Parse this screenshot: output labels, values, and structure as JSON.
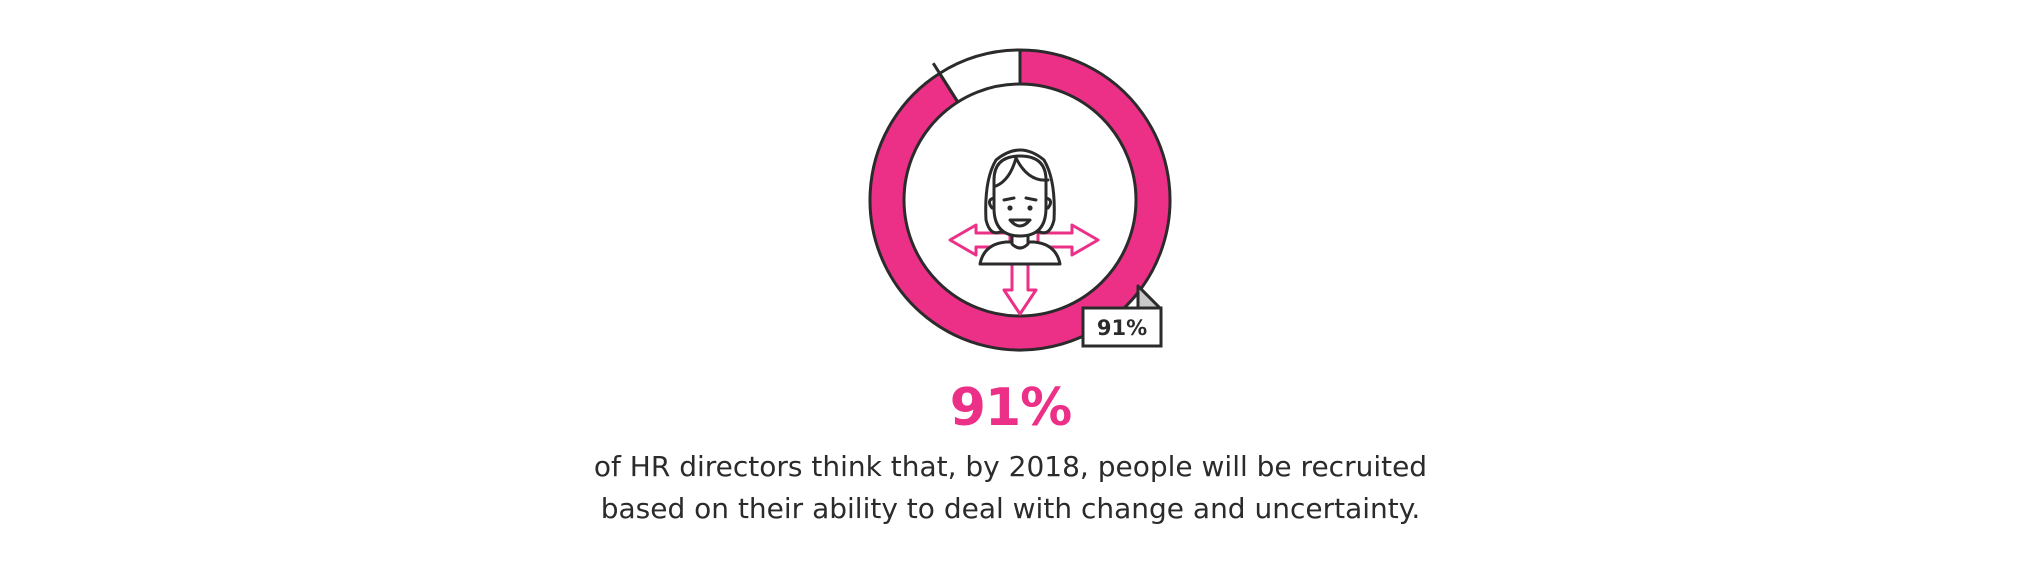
{
  "chart_data": {
    "type": "pie",
    "categories": [
      "",
      ""
    ],
    "values": [
      91,
      9
    ],
    "data_label": "91%",
    "colors": [
      "#ec2f87",
      "#ffffff"
    ],
    "outline_color": "#2b2b2b",
    "center_icon": "person-with-arrows-icon"
  },
  "statistic": {
    "value": "91%",
    "caption_lines": [
      "of HR directors think that, by 2018, people will be recruited",
      "based on their ability to deal with change and uncertainty."
    ]
  },
  "colors": {
    "accent": "#ec2f87",
    "text": "#2b2b2b",
    "background": "#ffffff"
  }
}
